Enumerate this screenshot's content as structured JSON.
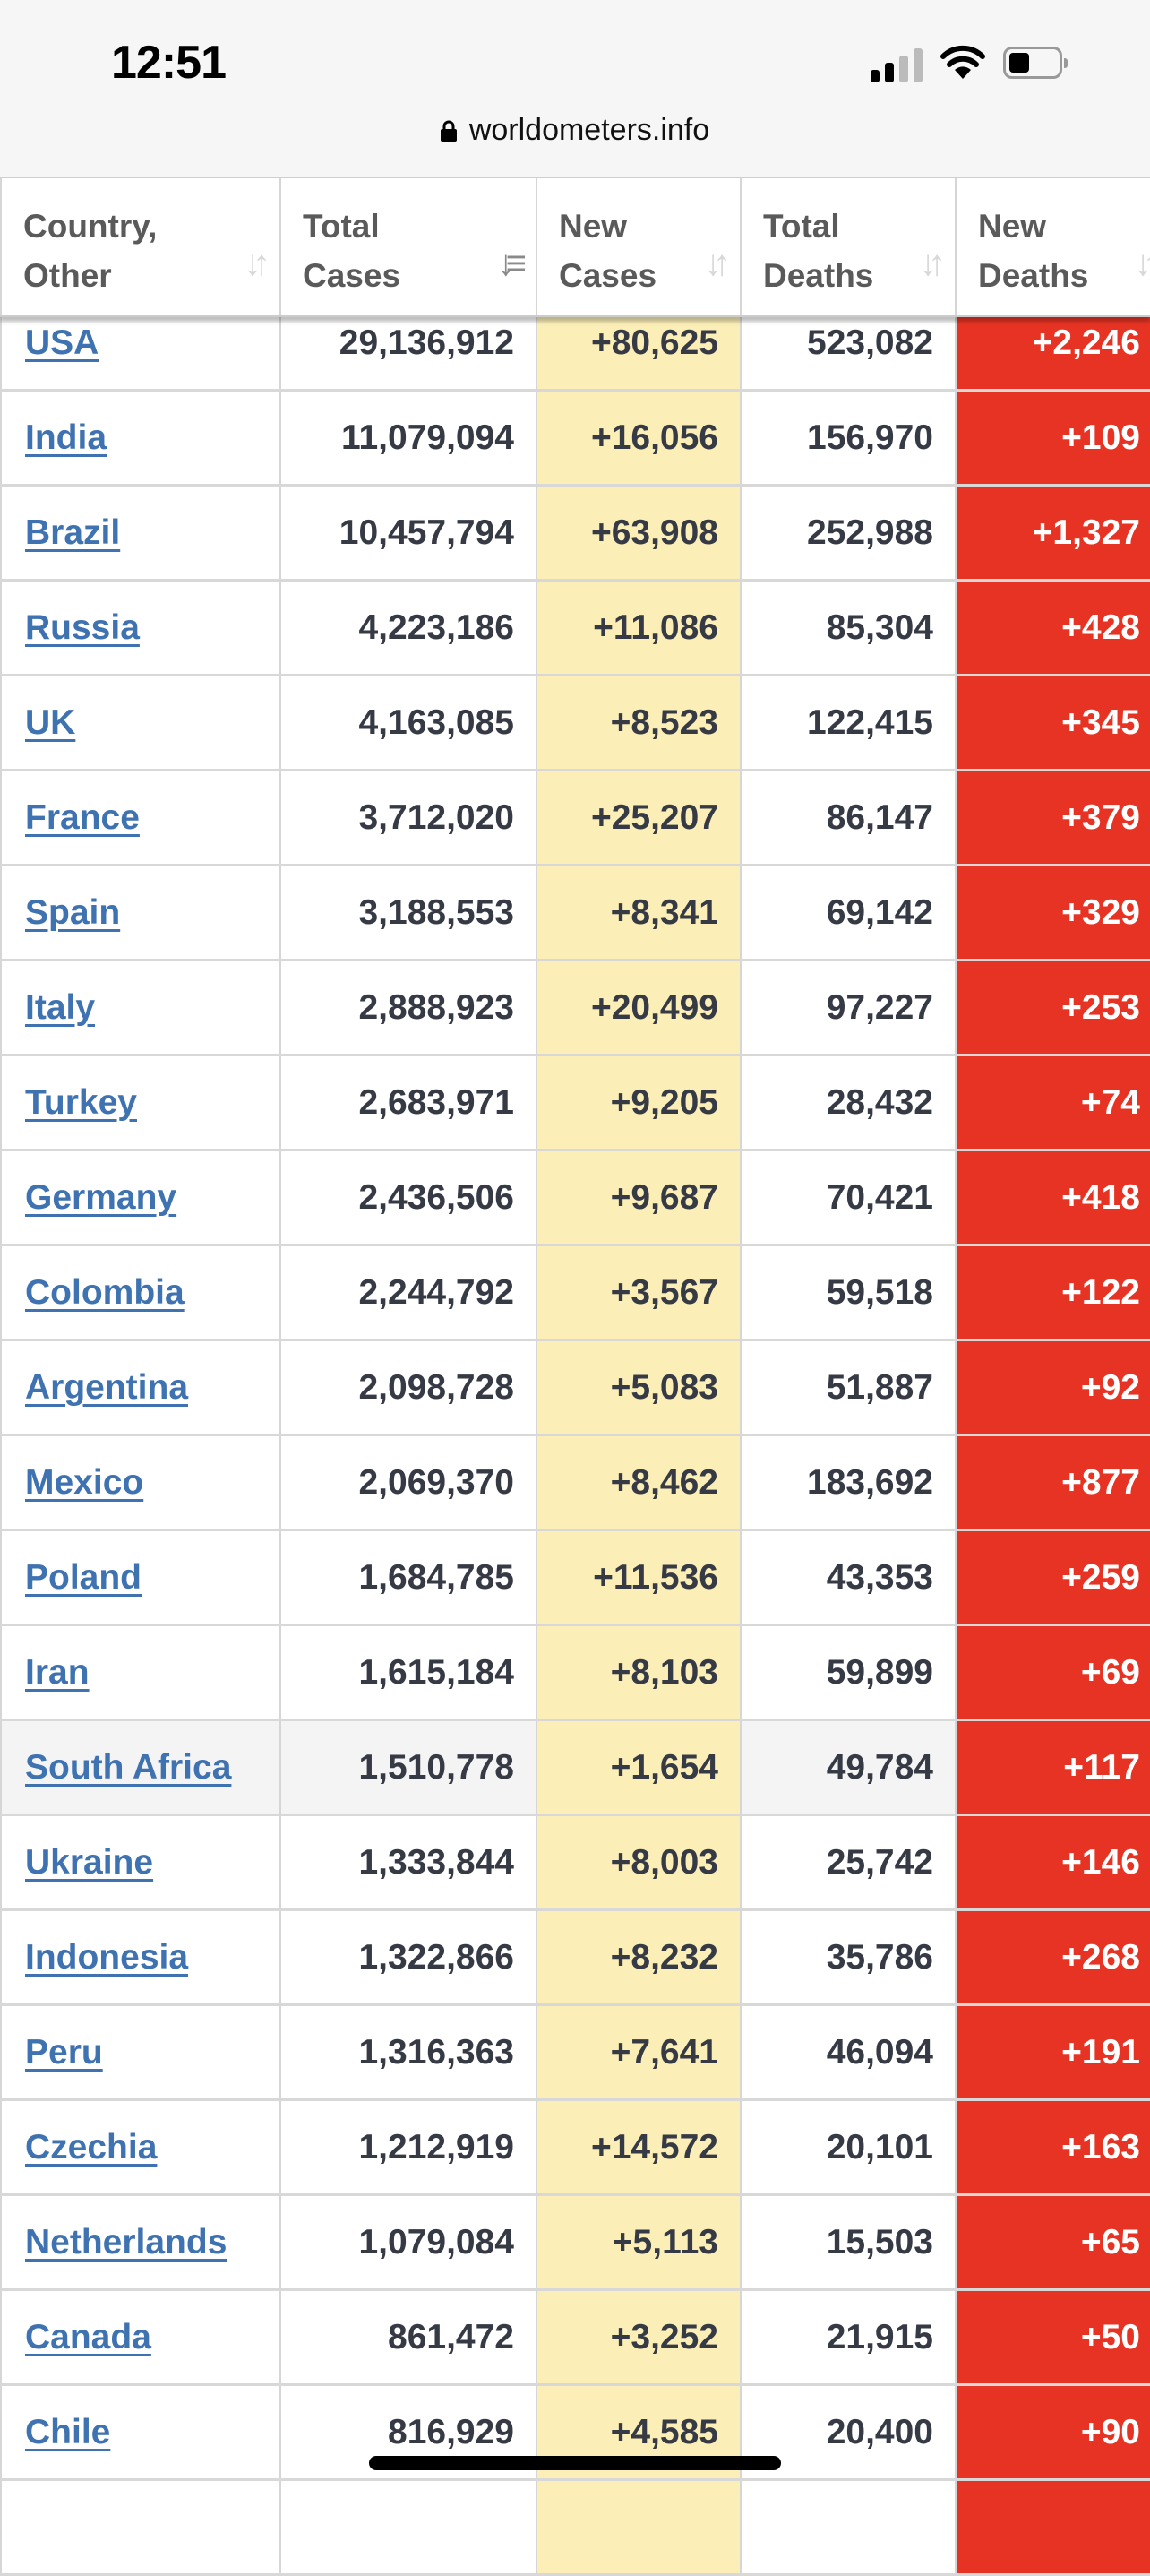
{
  "status_bar": {
    "time": "12:51",
    "icons": [
      "signal-icon",
      "wifi-icon",
      "battery-icon"
    ]
  },
  "browser": {
    "url": "worldometers.info",
    "lock_icon": "lock-icon"
  },
  "table": {
    "headers": [
      {
        "line1": "Country,",
        "line2": "Other",
        "sort_icon": "sort-icon"
      },
      {
        "line1": "Total",
        "line2": "Cases",
        "sort_icon": "sort-desc-icon"
      },
      {
        "line1": "New",
        "line2": "Cases",
        "sort_icon": "sort-icon"
      },
      {
        "line1": "Total",
        "line2": "Deaths",
        "sort_icon": "sort-icon"
      },
      {
        "line1": "New",
        "line2": "Deaths",
        "sort_icon": "sort-icon"
      }
    ],
    "rows": [
      [
        "USA",
        "29,136,912",
        "+80,625",
        "523,082",
        "+2,246"
      ],
      [
        "India",
        "11,079,094",
        "+16,056",
        "156,970",
        "+109"
      ],
      [
        "Brazil",
        "10,457,794",
        "+63,908",
        "252,988",
        "+1,327"
      ],
      [
        "Russia",
        "4,223,186",
        "+11,086",
        "85,304",
        "+428"
      ],
      [
        "UK",
        "4,163,085",
        "+8,523",
        "122,415",
        "+345"
      ],
      [
        "France",
        "3,712,020",
        "+25,207",
        "86,147",
        "+379"
      ],
      [
        "Spain",
        "3,188,553",
        "+8,341",
        "69,142",
        "+329"
      ],
      [
        "Italy",
        "2,888,923",
        "+20,499",
        "97,227",
        "+253"
      ],
      [
        "Turkey",
        "2,683,971",
        "+9,205",
        "28,432",
        "+74"
      ],
      [
        "Germany",
        "2,436,506",
        "+9,687",
        "70,421",
        "+418"
      ],
      [
        "Colombia",
        "2,244,792",
        "+3,567",
        "59,518",
        "+122"
      ],
      [
        "Argentina",
        "2,098,728",
        "+5,083",
        "51,887",
        "+92"
      ],
      [
        "Mexico",
        "2,069,370",
        "+8,462",
        "183,692",
        "+877"
      ],
      [
        "Poland",
        "1,684,785",
        "+11,536",
        "43,353",
        "+259"
      ],
      [
        "Iran",
        "1,615,184",
        "+8,103",
        "59,899",
        "+69"
      ],
      [
        "South Africa",
        "1,510,778",
        "+1,654",
        "49,784",
        "+117"
      ],
      [
        "Ukraine",
        "1,333,844",
        "+8,003",
        "25,742",
        "+146"
      ],
      [
        "Indonesia",
        "1,322,866",
        "+8,232",
        "35,786",
        "+268"
      ],
      [
        "Peru",
        "1,316,363",
        "+7,641",
        "46,094",
        "+191"
      ],
      [
        "Czechia",
        "1,212,919",
        "+14,572",
        "20,101",
        "+163"
      ],
      [
        "Netherlands",
        "1,079,084",
        "+5,113",
        "15,503",
        "+65"
      ],
      [
        "Canada",
        "861,472",
        "+3,252",
        "21,915",
        "+50"
      ],
      [
        "Chile",
        "816,929",
        "+4,585",
        "20,400",
        "+90"
      ],
      [
        "",
        "",
        "",
        "",
        ""
      ]
    ],
    "highlighted_row": "South Africa"
  },
  "colors": {
    "link": "#3f72b0",
    "new_cases_bg": "#fbeeb6",
    "new_deaths_bg": "#e73323"
  }
}
